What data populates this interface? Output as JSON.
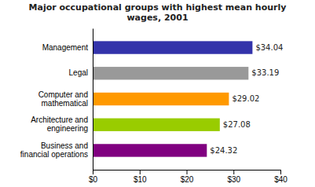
{
  "chart_data": {
    "type": "bar",
    "orientation": "horizontal",
    "title": "Major occupational groups with highest mean hourly\nwages, 2001",
    "categories": [
      "Business and\nfinancial operations",
      "Architecture and\nengineering",
      "Computer and\nmathematical",
      "Legal",
      "Management"
    ],
    "values": [
      24.32,
      27.08,
      29.02,
      33.19,
      34.04
    ],
    "value_labels": [
      "$24.32",
      "$27.08",
      "$29.02",
      "$33.19",
      "$34.04"
    ],
    "data_labels": true,
    "colors": [
      "#800080",
      "#99cc00",
      "#ff9900",
      "#999999",
      "#3333aa"
    ],
    "xlim": [
      0,
      40
    ],
    "xticks": [
      {
        "value": 0,
        "label": "$0"
      },
      {
        "value": 10,
        "label": "$10"
      },
      {
        "value": 20,
        "label": "$20"
      },
      {
        "value": 30,
        "label": "$30"
      },
      {
        "value": 40,
        "label": "$40"
      }
    ],
    "grid": false
  }
}
